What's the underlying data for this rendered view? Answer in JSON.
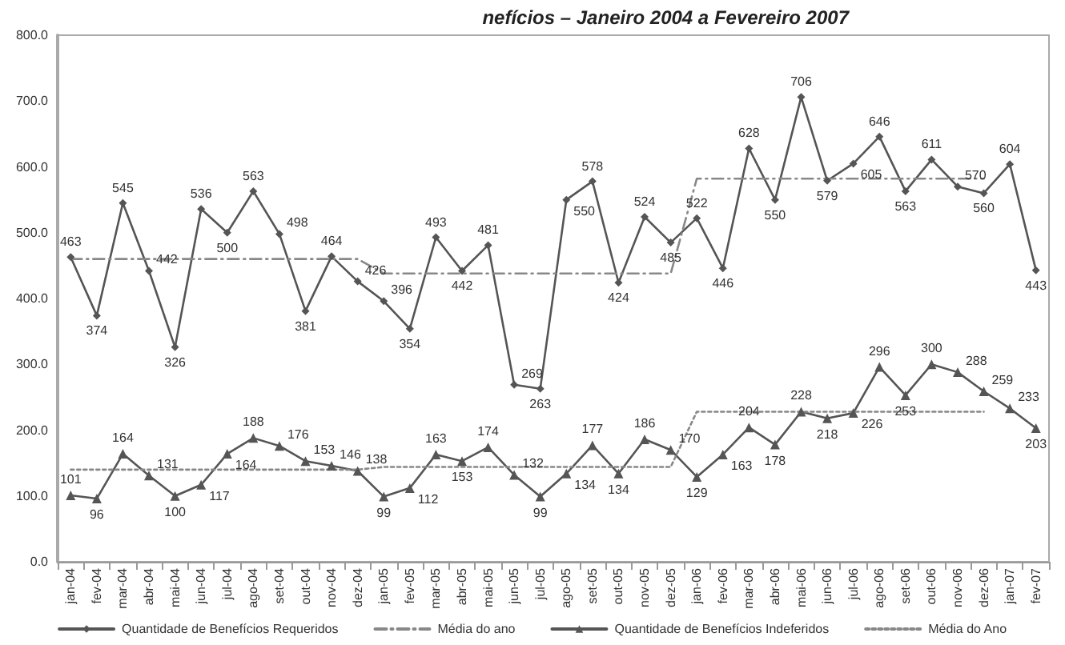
{
  "chart_data": {
    "type": "line",
    "title": "nefícios – Janeiro 2004 a Fevereiro 2007",
    "categories": [
      "jan-04",
      "fev-04",
      "mar-04",
      "abr-04",
      "mai-04",
      "jun-04",
      "jul-04",
      "ago-04",
      "set-04",
      "out-04",
      "nov-04",
      "dez-04",
      "jan-05",
      "fev-05",
      "mar-05",
      "abr-05",
      "mai-05",
      "jun-05",
      "jul-05",
      "ago-05",
      "set-05",
      "out-05",
      "nov-05",
      "dez-05",
      "jan-06",
      "fev-06",
      "mar-06",
      "abr-06",
      "mai-06",
      "jun-06",
      "jul-06",
      "ago-06",
      "set-06",
      "out-06",
      "nov-06",
      "dez-06",
      "jan-07",
      "fev-07"
    ],
    "ylim": [
      0,
      800
    ],
    "yticks": [
      {
        "value": 0,
        "label": "0.0"
      },
      {
        "value": 100,
        "label": "100.0"
      },
      {
        "value": 200,
        "label": "200.0"
      },
      {
        "value": 300,
        "label": "300.0"
      },
      {
        "value": 400,
        "label": "400.0"
      },
      {
        "value": 500,
        "label": "500.0"
      },
      {
        "value": 600,
        "label": "600.0"
      },
      {
        "value": 700,
        "label": "700.0"
      },
      {
        "value": 800,
        "label": "800.0"
      }
    ],
    "grid": false,
    "legend": "bottom",
    "series": [
      {
        "name": "Quantidade de Benefícios Requeridos",
        "color": "#555555",
        "marker": "diamond",
        "line_style": "solid",
        "data_labels": true,
        "values": [
          463,
          374,
          545,
          442,
          326,
          536,
          500,
          563,
          498,
          381,
          464,
          426,
          396,
          354,
          493,
          442,
          481,
          269,
          263,
          550,
          578,
          424,
          524,
          485,
          522,
          446,
          628,
          550,
          706,
          579,
          605,
          646,
          563,
          611,
          570,
          560,
          604,
          443
        ]
      },
      {
        "name": "Média do ano",
        "color": "#888888",
        "marker": "none",
        "line_style": "dashed",
        "values": [
          460,
          460,
          460,
          460,
          460,
          460,
          460,
          460,
          460,
          460,
          460,
          460,
          438,
          438,
          438,
          438,
          438,
          438,
          438,
          438,
          438,
          438,
          438,
          438,
          582,
          582,
          582,
          582,
          582,
          582,
          582,
          582,
          582,
          582,
          582,
          582,
          null,
          null
        ]
      },
      {
        "name": "Quantidade de Benefícios Indeferidos",
        "color": "#555555",
        "marker": "triangle",
        "line_style": "solid",
        "data_labels": true,
        "values": [
          101,
          96,
          164,
          131,
          100,
          117,
          164,
          188,
          176,
          153,
          146,
          138,
          99,
          112,
          163,
          153,
          174,
          132,
          99,
          134,
          177,
          134,
          186,
          170,
          129,
          163,
          204,
          178,
          228,
          218,
          226,
          296,
          253,
          300,
          288,
          259,
          233,
          203
        ]
      },
      {
        "name": "Média do Ano",
        "color": "#888888",
        "marker": "none",
        "line_style": "dotted",
        "values": [
          140,
          140,
          140,
          140,
          140,
          140,
          140,
          140,
          140,
          140,
          140,
          140,
          144,
          144,
          144,
          144,
          144,
          144,
          144,
          144,
          144,
          144,
          144,
          144,
          228,
          228,
          228,
          228,
          228,
          228,
          228,
          228,
          228,
          228,
          228,
          228,
          null,
          null
        ]
      }
    ]
  }
}
